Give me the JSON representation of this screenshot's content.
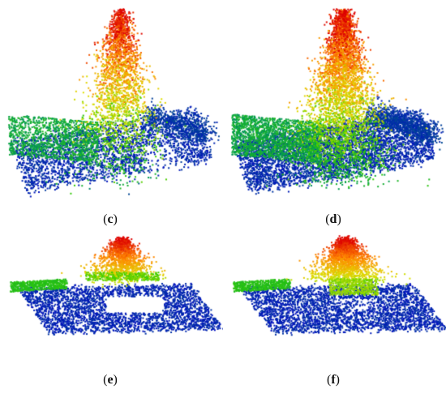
{
  "figure": {
    "panels": [
      {
        "id": "c",
        "label_open": "(",
        "label_letter": "c",
        "label_close": ")",
        "content": "point-cloud-tree-with-ground",
        "variant": "sparse"
      },
      {
        "id": "d",
        "label_open": "(",
        "label_letter": "d",
        "label_close": ")",
        "content": "point-cloud-tree-with-ground",
        "variant": "dense"
      },
      {
        "id": "e",
        "label_open": "(",
        "label_letter": "e",
        "label_close": ")",
        "content": "point-cloud-ground-plane-with-crown",
        "variant": "sparse"
      },
      {
        "id": "f",
        "label_open": "(",
        "label_letter": "f",
        "label_close": ")",
        "content": "point-cloud-ground-plane-with-crown",
        "variant": "dense"
      }
    ],
    "colors": {
      "low": "#0000cc",
      "mid_low": "#009955",
      "mid": "#33cc00",
      "mid_high": "#dddd00",
      "high": "#ff8800",
      "top": "#dd0000"
    }
  }
}
